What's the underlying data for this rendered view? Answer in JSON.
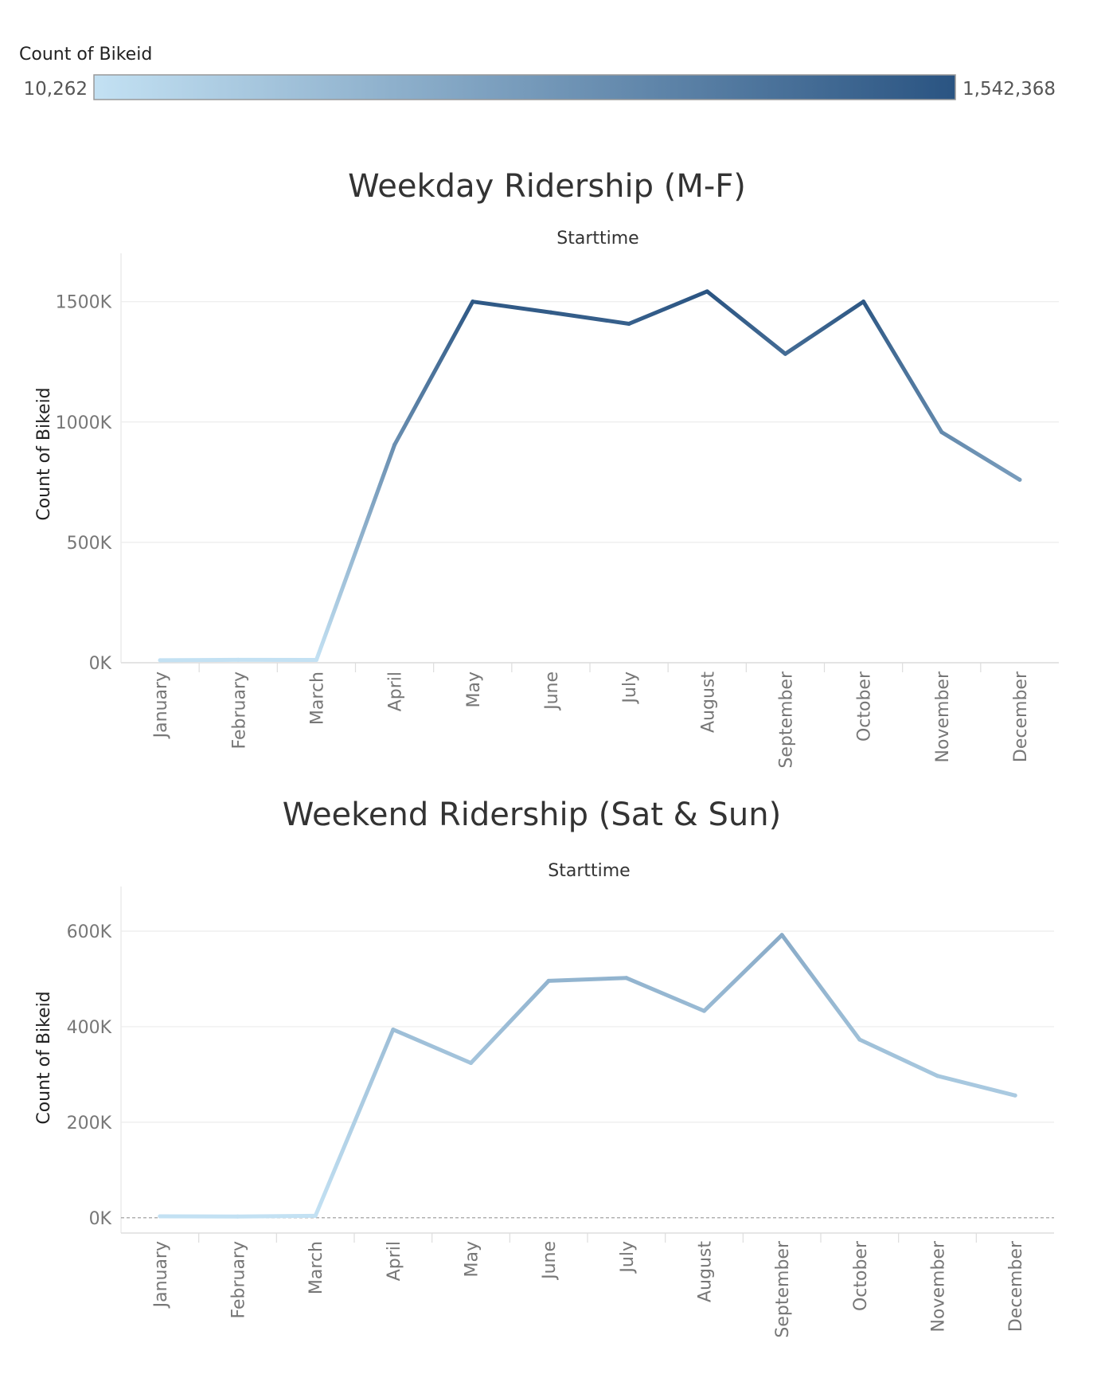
{
  "legend": {
    "title": "Count of Bikeid",
    "min_label": "10,262",
    "max_label": "1,542,368",
    "min_value": 10262,
    "max_value": 1542368,
    "color_low": "#c3e1f3",
    "color_high": "#2a5482"
  },
  "chart_data": [
    {
      "type": "line",
      "title": "Weekday Ridership (M-F)",
      "column_header": "Starttime",
      "ylabel": "Count of Bikeid",
      "categories": [
        "January",
        "February",
        "March",
        "April",
        "May",
        "June",
        "July",
        "August",
        "September",
        "October",
        "November",
        "December"
      ],
      "values": [
        10262,
        12000,
        11500,
        905000,
        1500000,
        1455000,
        1408000,
        1542368,
        1283000,
        1500000,
        958000,
        760000
      ],
      "y_ticks": [
        0,
        500000,
        1000000,
        1500000
      ],
      "y_tick_labels": [
        "0K",
        "500K",
        "1000K",
        "1500K"
      ],
      "ylim": [
        0,
        1575000
      ],
      "grid": true,
      "legend": "top"
    },
    {
      "type": "line",
      "title": "Weekend Ridership (Sat & Sun)",
      "column_header": "Starttime",
      "ylabel": "Count of Bikeid",
      "categories": [
        "January",
        "February",
        "March",
        "April",
        "May",
        "June",
        "July",
        "August",
        "September",
        "October",
        "November",
        "December"
      ],
      "values": [
        3000,
        2500,
        4000,
        394000,
        324000,
        496000,
        502000,
        433000,
        592000,
        373000,
        297000,
        256000
      ],
      "y_ticks": [
        0,
        200000,
        400000,
        600000
      ],
      "y_tick_labels": [
        "0K",
        "200K",
        "400K",
        "600K"
      ],
      "ylim": [
        -32000,
        630000
      ],
      "zero_line": true,
      "grid": true,
      "legend": "top"
    }
  ]
}
